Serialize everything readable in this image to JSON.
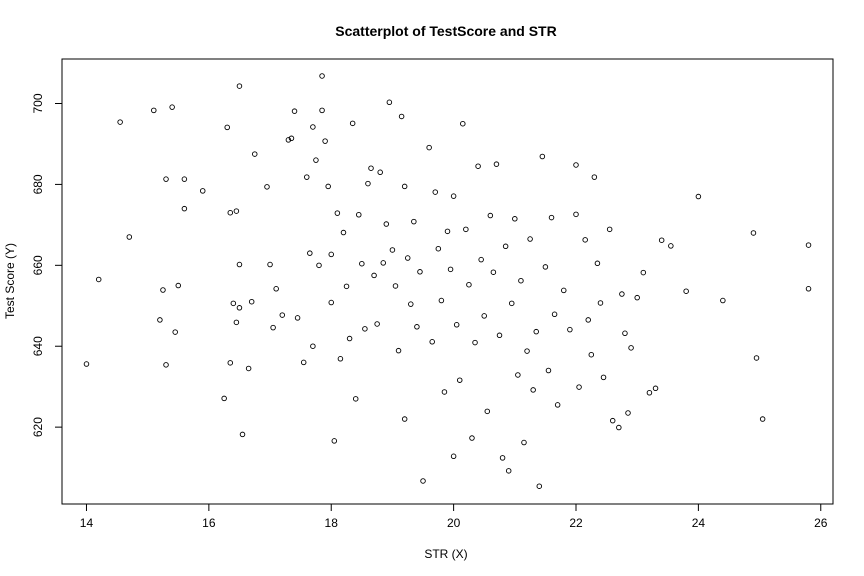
{
  "chart_data": {
    "type": "scatter",
    "title": "Scatterplot of TestScore and STR",
    "xlabel": "STR (X)",
    "ylabel": "Test Score (Y)",
    "xlim": [
      13.6,
      26.2
    ],
    "ylim": [
      601,
      711
    ],
    "x_ticks": [
      14,
      16,
      18,
      20,
      22,
      24,
      26
    ],
    "y_ticks": [
      620,
      640,
      660,
      680,
      700
    ],
    "grid": false,
    "series": [
      {
        "points": [
          [
            14.0,
            635.6
          ],
          [
            14.2,
            656.5
          ],
          [
            14.55,
            695.4
          ],
          [
            14.7,
            667.0
          ],
          [
            15.1,
            698.3
          ],
          [
            15.2,
            646.5
          ],
          [
            15.25,
            653.9
          ],
          [
            15.3,
            681.3
          ],
          [
            15.3,
            635.4
          ],
          [
            15.4,
            699.1
          ],
          [
            15.45,
            643.5
          ],
          [
            15.5,
            655.0
          ],
          [
            15.6,
            681.3
          ],
          [
            15.6,
            674.0
          ],
          [
            15.9,
            678.4
          ],
          [
            16.25,
            627.1
          ],
          [
            16.3,
            694.1
          ],
          [
            16.35,
            673.0
          ],
          [
            16.35,
            635.9
          ],
          [
            16.4,
            650.6
          ],
          [
            16.45,
            673.4
          ],
          [
            16.45,
            645.9
          ],
          [
            16.5,
            704.3
          ],
          [
            16.5,
            660.2
          ],
          [
            16.5,
            649.5
          ],
          [
            16.55,
            618.2
          ],
          [
            16.65,
            634.5
          ],
          [
            16.7,
            651.0
          ],
          [
            16.75,
            687.5
          ],
          [
            16.95,
            679.4
          ],
          [
            17.0,
            660.2
          ],
          [
            17.05,
            644.6
          ],
          [
            17.1,
            654.2
          ],
          [
            17.2,
            647.7
          ],
          [
            17.3,
            691.0
          ],
          [
            17.35,
            691.4
          ],
          [
            17.4,
            698.1
          ],
          [
            17.45,
            647.0
          ],
          [
            17.55,
            636.0
          ],
          [
            17.6,
            681.8
          ],
          [
            17.65,
            663.0
          ],
          [
            17.7,
            694.2
          ],
          [
            17.7,
            640.0
          ],
          [
            17.75,
            686.0
          ],
          [
            17.8,
            660.0
          ],
          [
            17.85,
            698.3
          ],
          [
            17.85,
            706.8
          ],
          [
            17.9,
            690.7
          ],
          [
            17.95,
            679.5
          ],
          [
            18.0,
            662.7
          ],
          [
            18.0,
            650.8
          ],
          [
            18.05,
            616.6
          ],
          [
            18.1,
            672.9
          ],
          [
            18.15,
            636.9
          ],
          [
            18.2,
            668.1
          ],
          [
            18.25,
            654.8
          ],
          [
            18.3,
            641.9
          ],
          [
            18.35,
            695.1
          ],
          [
            18.4,
            627.0
          ],
          [
            18.45,
            672.5
          ],
          [
            18.5,
            660.4
          ],
          [
            18.55,
            644.3
          ],
          [
            18.6,
            680.2
          ],
          [
            18.65,
            684.0
          ],
          [
            18.7,
            657.5
          ],
          [
            18.75,
            645.5
          ],
          [
            18.8,
            683.0
          ],
          [
            18.85,
            660.6
          ],
          [
            18.9,
            670.2
          ],
          [
            18.95,
            700.3
          ],
          [
            19.0,
            663.8
          ],
          [
            19.05,
            654.9
          ],
          [
            19.1,
            638.9
          ],
          [
            19.15,
            696.8
          ],
          [
            19.2,
            679.5
          ],
          [
            19.2,
            622.0
          ],
          [
            19.25,
            661.8
          ],
          [
            19.3,
            650.4
          ],
          [
            19.35,
            670.8
          ],
          [
            19.4,
            644.8
          ],
          [
            19.45,
            658.4
          ],
          [
            19.5,
            606.7
          ],
          [
            19.6,
            689.1
          ],
          [
            19.65,
            641.1
          ],
          [
            19.7,
            678.1
          ],
          [
            19.75,
            664.1
          ],
          [
            19.8,
            651.3
          ],
          [
            19.85,
            628.7
          ],
          [
            19.9,
            668.4
          ],
          [
            19.95,
            659.0
          ],
          [
            20.0,
            612.8
          ],
          [
            20.0,
            677.1
          ],
          [
            20.05,
            645.3
          ],
          [
            20.1,
            631.6
          ],
          [
            20.15,
            695.0
          ],
          [
            20.2,
            668.9
          ],
          [
            20.25,
            655.2
          ],
          [
            20.3,
            617.3
          ],
          [
            20.35,
            640.9
          ],
          [
            20.4,
            684.5
          ],
          [
            20.45,
            661.4
          ],
          [
            20.5,
            647.5
          ],
          [
            20.55,
            623.9
          ],
          [
            20.6,
            672.3
          ],
          [
            20.65,
            658.3
          ],
          [
            20.7,
            685.0
          ],
          [
            20.75,
            642.7
          ],
          [
            20.8,
            612.4
          ],
          [
            20.85,
            664.7
          ],
          [
            20.9,
            609.2
          ],
          [
            20.95,
            650.6
          ],
          [
            21.0,
            671.5
          ],
          [
            21.05,
            632.9
          ],
          [
            21.1,
            656.2
          ],
          [
            21.15,
            616.2
          ],
          [
            21.2,
            638.8
          ],
          [
            21.25,
            666.5
          ],
          [
            21.3,
            629.2
          ],
          [
            21.35,
            643.6
          ],
          [
            21.4,
            605.4
          ],
          [
            21.45,
            686.9
          ],
          [
            21.5,
            659.6
          ],
          [
            21.55,
            634.0
          ],
          [
            21.6,
            671.8
          ],
          [
            21.65,
            647.9
          ],
          [
            21.7,
            625.5
          ],
          [
            21.8,
            653.8
          ],
          [
            21.9,
            644.1
          ],
          [
            22.0,
            684.8
          ],
          [
            22.0,
            672.6
          ],
          [
            22.05,
            629.9
          ],
          [
            22.15,
            666.3
          ],
          [
            22.2,
            646.5
          ],
          [
            22.25,
            637.9
          ],
          [
            22.3,
            681.8
          ],
          [
            22.35,
            660.5
          ],
          [
            22.4,
            650.7
          ],
          [
            22.45,
            632.3
          ],
          [
            22.55,
            668.9
          ],
          [
            22.6,
            621.6
          ],
          [
            22.7,
            619.9
          ],
          [
            22.75,
            652.9
          ],
          [
            22.8,
            643.2
          ],
          [
            22.85,
            623.5
          ],
          [
            22.9,
            639.6
          ],
          [
            23.0,
            652.0
          ],
          [
            23.1,
            658.2
          ],
          [
            23.2,
            628.5
          ],
          [
            23.3,
            629.6
          ],
          [
            23.4,
            666.2
          ],
          [
            23.55,
            664.8
          ],
          [
            23.8,
            653.6
          ],
          [
            24.0,
            677.0
          ],
          [
            24.4,
            651.3
          ],
          [
            24.9,
            668.0
          ],
          [
            24.95,
            637.1
          ],
          [
            25.05,
            622.0
          ],
          [
            25.8,
            665.0
          ],
          [
            25.8,
            654.2
          ]
        ]
      }
    ]
  }
}
